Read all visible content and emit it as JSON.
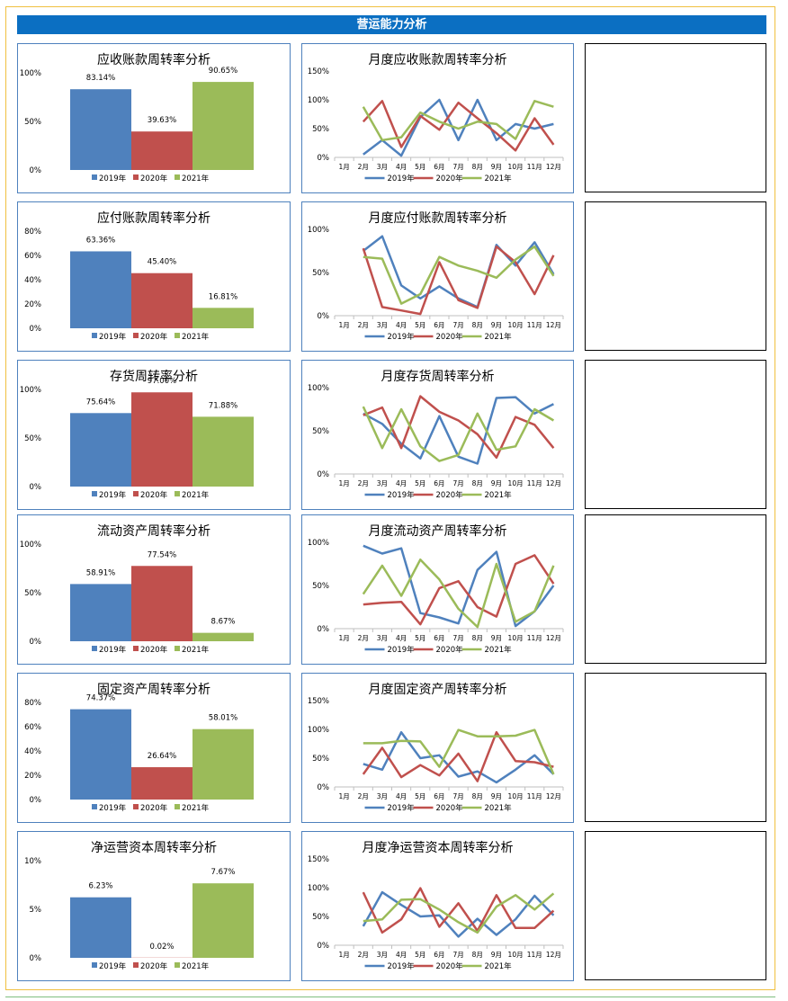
{
  "page": {
    "title": "营运能力分析"
  },
  "legend_labels": [
    "2019年",
    "2020年",
    "2021年"
  ],
  "colors": {
    "s2019": "#4f81bd",
    "s2020": "#c0504d",
    "s2021": "#9bbb59",
    "title_bar": "#0b6fc2",
    "panel_border": "#4e81bd"
  },
  "months": [
    "1月",
    "2月",
    "3月",
    "4月",
    "5月",
    "6月",
    "7月",
    "8月",
    "9月",
    "10月",
    "11月",
    "12月"
  ],
  "chart_data": [
    {
      "type": "bar",
      "title": "应收账款周转率分析",
      "categories": [
        "2019年",
        "2020年",
        "2021年"
      ],
      "values": [
        83.14,
        39.63,
        90.65
      ],
      "labels": [
        "83.14%",
        "39.63%",
        "90.65%"
      ],
      "yticks": [
        "0%",
        "50%",
        "100%"
      ],
      "ylim": [
        0,
        100
      ],
      "legend": "bottom"
    },
    {
      "type": "line",
      "title": "月度应收账款周转率分析",
      "x": [
        "1月",
        "2月",
        "3月",
        "4月",
        "5月",
        "6月",
        "7月",
        "8月",
        "9月",
        "10月",
        "11月",
        "12月"
      ],
      "yticks": [
        "0%",
        "50%",
        "100%",
        "150%"
      ],
      "ylim": [
        0,
        150
      ],
      "legend": "bottom",
      "series": [
        {
          "name": "2019年",
          "values": [
            null,
            5,
            30,
            3,
            70,
            100,
            30,
            100,
            30,
            58,
            50,
            58
          ]
        },
        {
          "name": "2020年",
          "values": [
            null,
            62,
            98,
            18,
            72,
            48,
            95,
            68,
            42,
            12,
            68,
            22
          ]
        },
        {
          "name": "2021年",
          "values": [
            null,
            88,
            30,
            35,
            78,
            62,
            50,
            62,
            58,
            32,
            98,
            88
          ]
        }
      ]
    },
    {
      "type": "bar",
      "title": "应付账款周转率分析",
      "categories": [
        "2019年",
        "2020年",
        "2021年"
      ],
      "values": [
        63.36,
        45.4,
        16.81
      ],
      "labels": [
        "63.36%",
        "45.40%",
        "16.81%"
      ],
      "yticks": [
        "0%",
        "20%",
        "40%",
        "60%",
        "80%"
      ],
      "ylim": [
        0,
        80
      ],
      "legend": "bottom"
    },
    {
      "type": "line",
      "title": "月度应付账款周转率分析",
      "x": [
        "1月",
        "2月",
        "3月",
        "4月",
        "5月",
        "6月",
        "7月",
        "8月",
        "9月",
        "10月",
        "11月",
        "12月"
      ],
      "yticks": [
        "0%",
        "50%",
        "100%"
      ],
      "ylim": [
        0,
        100
      ],
      "legend": "bottom",
      "series": [
        {
          "name": "2019年",
          "values": [
            null,
            75,
            92,
            35,
            20,
            34,
            20,
            10,
            82,
            58,
            85,
            48
          ]
        },
        {
          "name": "2020年",
          "values": [
            null,
            78,
            10,
            6,
            2,
            62,
            18,
            9,
            80,
            62,
            25,
            70
          ]
        },
        {
          "name": "2021年",
          "values": [
            null,
            68,
            66,
            14,
            25,
            68,
            58,
            52,
            44,
            65,
            80,
            46
          ]
        }
      ]
    },
    {
      "type": "bar",
      "title": "存货周转率分析",
      "categories": [
        "2019年",
        "2020年",
        "2021年"
      ],
      "values": [
        75.64,
        97.0,
        71.88
      ],
      "labels": [
        "75.64%",
        "97.00%",
        "71.88%"
      ],
      "yticks": [
        "0%",
        "50%",
        "100%"
      ],
      "ylim": [
        0,
        100
      ],
      "legend": "bottom"
    },
    {
      "type": "line",
      "title": "月度存货周转率分析",
      "x": [
        "1月",
        "2月",
        "3月",
        "4月",
        "5月",
        "6月",
        "7月",
        "8月",
        "9月",
        "10月",
        "11月",
        "12月"
      ],
      "yticks": [
        "0%",
        "50%",
        "100%"
      ],
      "ylim": [
        0,
        100
      ],
      "legend": "bottom",
      "series": [
        {
          "name": "2019年",
          "values": [
            null,
            70,
            58,
            35,
            18,
            67,
            20,
            12,
            88,
            89,
            70,
            81
          ]
        },
        {
          "name": "2020年",
          "values": [
            null,
            68,
            77,
            30,
            90,
            72,
            62,
            46,
            19,
            66,
            57,
            30
          ]
        },
        {
          "name": "2021年",
          "values": [
            null,
            78,
            30,
            75,
            32,
            15,
            22,
            70,
            28,
            32,
            75,
            62
          ]
        }
      ]
    },
    {
      "type": "bar",
      "title": "流动资产周转率分析",
      "categories": [
        "2019年",
        "2020年",
        "2021年"
      ],
      "values": [
        58.91,
        77.54,
        8.67
      ],
      "labels": [
        "58.91%",
        "77.54%",
        "8.67%"
      ],
      "yticks": [
        "0%",
        "50%",
        "100%"
      ],
      "ylim": [
        0,
        100
      ],
      "legend": "bottom"
    },
    {
      "type": "line",
      "title": "月度流动资产周转率分析",
      "x": [
        "1月",
        "2月",
        "3月",
        "4月",
        "5月",
        "6月",
        "7月",
        "8月",
        "9月",
        "10月",
        "11月",
        "12月"
      ],
      "yticks": [
        "0%",
        "50%",
        "100%"
      ],
      "ylim": [
        0,
        100
      ],
      "legend": "bottom",
      "series": [
        {
          "name": "2019年",
          "values": [
            null,
            96,
            87,
            93,
            18,
            13,
            6,
            68,
            89,
            3,
            20,
            50
          ]
        },
        {
          "name": "2020年",
          "values": [
            null,
            28,
            30,
            31,
            5,
            47,
            55,
            25,
            14,
            75,
            85,
            52
          ]
        },
        {
          "name": "2021年",
          "values": [
            null,
            40,
            73,
            38,
            80,
            57,
            23,
            2,
            75,
            8,
            20,
            73
          ]
        }
      ]
    },
    {
      "type": "bar",
      "title": "固定资产周转率分析",
      "categories": [
        "2019年",
        "2020年",
        "2021年"
      ],
      "values": [
        74.37,
        26.64,
        58.01
      ],
      "labels": [
        "74.37%",
        "26.64%",
        "58.01%"
      ],
      "yticks": [
        "0%",
        "20%",
        "40%",
        "60%",
        "80%"
      ],
      "ylim": [
        0,
        80
      ],
      "legend": "bottom"
    },
    {
      "type": "line",
      "title": "月度固定资产周转率分析",
      "x": [
        "1月",
        "2月",
        "3月",
        "4月",
        "5月",
        "6月",
        "7月",
        "8月",
        "9月",
        "10月",
        "11月",
        "12月"
      ],
      "yticks": [
        "0%",
        "50%",
        "100%",
        "150%"
      ],
      "ylim": [
        0,
        150
      ],
      "legend": "bottom",
      "series": [
        {
          "name": "2019年",
          "values": [
            null,
            40,
            30,
            95,
            50,
            55,
            18,
            27,
            8,
            30,
            55,
            22
          ]
        },
        {
          "name": "2020年",
          "values": [
            null,
            22,
            68,
            17,
            38,
            20,
            58,
            10,
            95,
            45,
            43,
            35
          ]
        },
        {
          "name": "2021年",
          "values": [
            null,
            76,
            76,
            80,
            79,
            35,
            99,
            88,
            88,
            89,
            99,
            22
          ]
        }
      ]
    },
    {
      "type": "bar",
      "title": "净运营资本周转率分析",
      "categories": [
        "2019年",
        "2020年",
        "2021年"
      ],
      "values": [
        6.23,
        0.02,
        7.67
      ],
      "labels": [
        "6.23%",
        "0.02%",
        "7.67%"
      ],
      "yticks": [
        "0%",
        "5%",
        "10%"
      ],
      "ylim": [
        0,
        10
      ],
      "legend": "bottom"
    },
    {
      "type": "line",
      "title": "月度净运营资本周转率分析",
      "x": [
        "1月",
        "2月",
        "3月",
        "4月",
        "5月",
        "6月",
        "7月",
        "8月",
        "9月",
        "10月",
        "11月",
        "12月"
      ],
      "yticks": [
        "0%",
        "50%",
        "100%",
        "150%"
      ],
      "ylim": [
        0,
        150
      ],
      "legend": "bottom",
      "series": [
        {
          "name": "2019年",
          "values": [
            null,
            33,
            92,
            70,
            50,
            52,
            15,
            46,
            18,
            45,
            86,
            52
          ]
        },
        {
          "name": "2020年",
          "values": [
            null,
            92,
            22,
            45,
            99,
            32,
            73,
            25,
            87,
            30,
            30,
            60
          ]
        },
        {
          "name": "2021年",
          "values": [
            null,
            42,
            45,
            79,
            80,
            62,
            40,
            22,
            67,
            87,
            62,
            90
          ]
        }
      ]
    }
  ]
}
